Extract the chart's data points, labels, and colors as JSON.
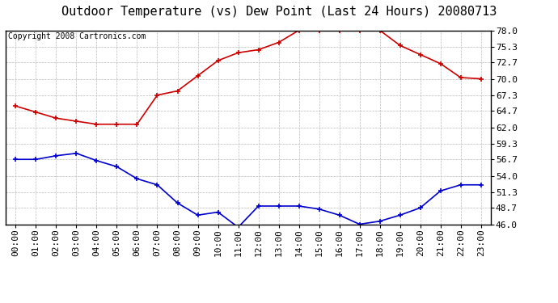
{
  "title": "Outdoor Temperature (vs) Dew Point (Last 24 Hours) 20080713",
  "copyright": "Copyright 2008 Cartronics.com",
  "hours": [
    "00:00",
    "01:00",
    "02:00",
    "03:00",
    "04:00",
    "05:00",
    "06:00",
    "07:00",
    "08:00",
    "09:00",
    "10:00",
    "11:00",
    "12:00",
    "13:00",
    "14:00",
    "15:00",
    "16:00",
    "17:00",
    "18:00",
    "19:00",
    "20:00",
    "21:00",
    "22:00",
    "23:00"
  ],
  "temp": [
    65.5,
    64.5,
    63.5,
    63.0,
    62.5,
    62.5,
    62.5,
    67.3,
    68.0,
    70.5,
    73.0,
    74.3,
    74.8,
    76.0,
    78.0,
    78.0,
    78.0,
    78.0,
    78.0,
    75.5,
    74.0,
    72.5,
    70.2,
    70.0
  ],
  "dewpoint": [
    56.7,
    56.7,
    57.3,
    57.7,
    56.5,
    55.5,
    53.5,
    52.5,
    49.5,
    47.5,
    48.0,
    45.5,
    49.0,
    49.0,
    49.0,
    48.5,
    47.5,
    46.0,
    46.5,
    47.5,
    48.7,
    51.5,
    52.5,
    52.5
  ],
  "temp_color": "#cc0000",
  "dewpoint_color": "#0000cc",
  "bg_color": "#ffffff",
  "grid_color": "#bbbbbb",
  "yticks": [
    46.0,
    48.7,
    51.3,
    54.0,
    56.7,
    59.3,
    62.0,
    64.7,
    67.3,
    70.0,
    72.7,
    75.3,
    78.0
  ],
  "ymin": 46.0,
  "ymax": 78.0,
  "title_fontsize": 11,
  "copyright_fontsize": 7,
  "tick_fontsize": 8
}
